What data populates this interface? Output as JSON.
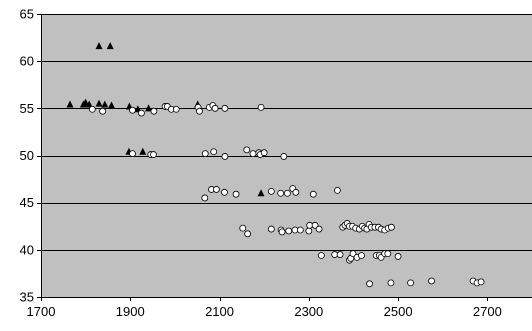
{
  "chart_data": {
    "type": "scatter",
    "title": "",
    "xlabel": "",
    "ylabel": "",
    "xlim": [
      1700,
      2800
    ],
    "ylim": [
      35,
      65
    ],
    "x_ticks": [
      1700,
      1900,
      2100,
      2300,
      2500,
      2700
    ],
    "y_ticks": [
      35,
      40,
      45,
      50,
      55,
      60,
      65
    ],
    "grid": "horizontal",
    "legend": "none",
    "colors": {
      "plot_background": "#c0c0c0",
      "gridline": "#000000",
      "circle_fill": "#ffffff",
      "circle_stroke": "#000000",
      "triangle_fill": "#000000"
    },
    "series": [
      {
        "marker": "triangle",
        "points": [
          [
            1830,
            61.6
          ],
          [
            1855,
            61.6
          ],
          [
            1765,
            55.4
          ],
          [
            1795,
            55.4
          ],
          [
            1800,
            55.6
          ],
          [
            1808,
            55.4
          ],
          [
            1830,
            55.5
          ],
          [
            1843,
            55.4
          ],
          [
            1858,
            55.3
          ],
          [
            1898,
            55.2
          ],
          [
            1917,
            54.9
          ],
          [
            1941,
            55.0
          ],
          [
            2051,
            55.4
          ],
          [
            1897,
            50.4
          ],
          [
            1928,
            50.4
          ],
          [
            2193,
            46.0
          ]
        ]
      },
      {
        "marker": "circle",
        "points": [
          [
            1815,
            54.9
          ],
          [
            1838,
            54.7
          ],
          [
            1905,
            54.8
          ],
          [
            1925,
            54.5
          ],
          [
            1953,
            54.7
          ],
          [
            1978,
            55.2
          ],
          [
            1983,
            55.2
          ],
          [
            1992,
            54.9
          ],
          [
            2003,
            54.9
          ],
          [
            2052,
            55.1
          ],
          [
            2055,
            54.7
          ],
          [
            2077,
            55.1
          ],
          [
            2085,
            55.3
          ],
          [
            2090,
            55.0
          ],
          [
            2112,
            55.0
          ],
          [
            2193,
            55.1
          ],
          [
            1905,
            50.2
          ],
          [
            1946,
            50.1
          ],
          [
            1952,
            50.1
          ],
          [
            2068,
            50.2
          ],
          [
            2087,
            50.4
          ],
          [
            2112,
            49.9
          ],
          [
            2161,
            50.6
          ],
          [
            2175,
            50.2
          ],
          [
            2188,
            50.3
          ],
          [
            2191,
            50.1
          ],
          [
            2200,
            50.3
          ],
          [
            2244,
            49.9
          ],
          [
            2067,
            45.5
          ],
          [
            2082,
            46.4
          ],
          [
            2093,
            46.4
          ],
          [
            2111,
            46.1
          ],
          [
            2137,
            45.9
          ],
          [
            2216,
            46.2
          ],
          [
            2237,
            46.0
          ],
          [
            2252,
            46.0
          ],
          [
            2264,
            46.5
          ],
          [
            2271,
            46.1
          ],
          [
            2310,
            45.9
          ],
          [
            2364,
            46.3
          ],
          [
            2152,
            42.3
          ],
          [
            2163,
            41.7
          ],
          [
            2216,
            42.2
          ],
          [
            2238,
            42.1
          ],
          [
            2240,
            41.9
          ],
          [
            2255,
            42.0
          ],
          [
            2269,
            42.1
          ],
          [
            2281,
            42.1
          ],
          [
            2300,
            42.0
          ],
          [
            2302,
            42.6
          ],
          [
            2314,
            42.6
          ],
          [
            2323,
            42.2
          ],
          [
            2328,
            39.4
          ],
          [
            2358,
            39.5
          ],
          [
            2370,
            39.5
          ],
          [
            2376,
            42.4
          ],
          [
            2381,
            42.6
          ],
          [
            2386,
            42.8
          ],
          [
            2391,
            42.5
          ],
          [
            2398,
            42.5
          ],
          [
            2405,
            42.3
          ],
          [
            2413,
            42.2
          ],
          [
            2420,
            42.5
          ],
          [
            2425,
            42.3
          ],
          [
            2430,
            42.2
          ],
          [
            2435,
            42.7
          ],
          [
            2440,
            42.4
          ],
          [
            2448,
            42.4
          ],
          [
            2456,
            42.4
          ],
          [
            2462,
            42.2
          ],
          [
            2470,
            42.1
          ],
          [
            2478,
            42.3
          ],
          [
            2485,
            42.4
          ],
          [
            2391,
            38.9
          ],
          [
            2394,
            39.1
          ],
          [
            2399,
            39.6
          ],
          [
            2408,
            39.2
          ],
          [
            2418,
            39.4
          ],
          [
            2451,
            39.4
          ],
          [
            2458,
            39.4
          ],
          [
            2462,
            39.2
          ],
          [
            2470,
            39.6
          ],
          [
            2477,
            39.6
          ],
          [
            2500,
            39.3
          ],
          [
            2436,
            36.4
          ],
          [
            2484,
            36.5
          ],
          [
            2528,
            36.5
          ],
          [
            2575,
            36.7
          ],
          [
            2668,
            36.7
          ],
          [
            2677,
            36.5
          ],
          [
            2686,
            36.6
          ]
        ]
      }
    ]
  }
}
